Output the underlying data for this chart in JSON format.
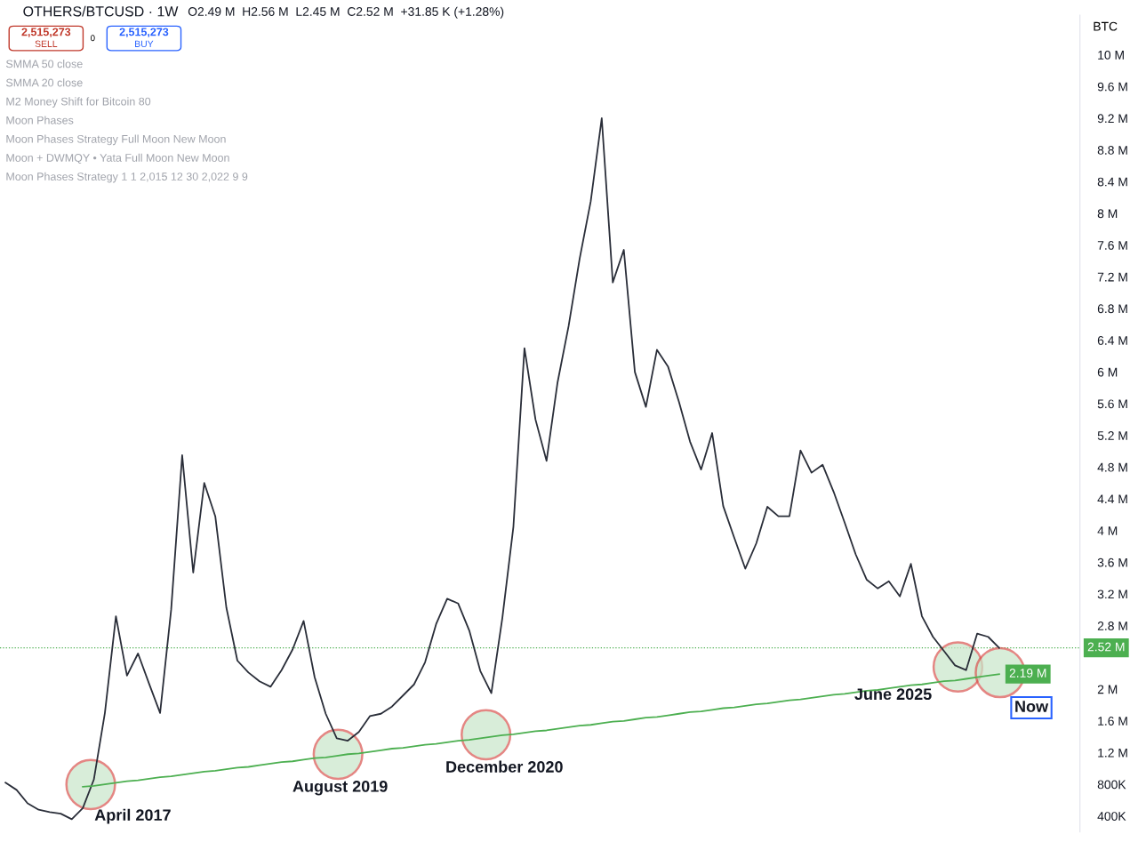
{
  "chart_data": {
    "type": "line",
    "title": "OTHERS/BTCUSD · 1W",
    "subtitle": "O2.49 M  H2.56 M  L2.45 M  C2.52 M  +31.85 K (+1.28%)",
    "ylabel": "BTC",
    "categories": [
      null,
      null,
      null,
      null,
      null,
      null,
      null,
      null,
      null,
      null,
      null,
      null,
      null,
      null,
      null,
      null,
      null,
      null,
      null,
      null,
      null,
      null,
      null,
      null,
      null,
      null,
      null,
      null,
      null,
      null,
      null,
      null,
      null,
      null,
      null,
      null,
      null,
      null,
      null,
      null,
      null,
      null,
      null,
      null,
      null,
      null,
      null,
      null,
      null,
      null,
      null,
      null,
      null,
      null,
      null,
      null,
      null,
      null,
      null,
      null,
      null,
      null,
      null,
      null,
      null,
      null,
      null,
      null,
      null,
      null,
      null,
      null,
      null,
      null,
      null,
      null,
      null,
      null,
      null,
      null,
      null,
      null,
      null,
      null,
      null,
      null,
      null,
      null,
      null,
      null,
      null
    ],
    "series": [
      {
        "color": "#2a2e39",
        "values": [
          820000,
          730000,
          560000,
          480000,
          450000,
          430000,
          360000,
          500000,
          860000,
          1700000,
          2920000,
          2170000,
          2450000,
          2070000,
          1700000,
          3000000,
          4950000,
          3470000,
          4600000,
          4180000,
          3030000,
          2360000,
          2210000,
          2100000,
          2030000,
          2240000,
          2500000,
          2860000,
          2150000,
          1690000,
          1380000,
          1350000,
          1460000,
          1660000,
          1690000,
          1780000,
          1920000,
          2060000,
          2340000,
          2820000,
          3140000,
          3080000,
          2740000,
          2230000,
          1950000,
          2900000,
          4050000,
          6300000,
          5400000,
          4880000,
          5870000,
          6580000,
          7430000,
          8150000,
          9200000,
          7130000,
          7540000,
          6000000,
          5560000,
          6280000,
          6070000,
          5620000,
          5120000,
          4770000,
          5230000,
          4310000,
          3910000,
          3520000,
          3840000,
          4300000,
          4180000,
          4180000,
          5010000,
          4730000,
          4830000,
          4490000,
          4100000,
          3700000,
          3380000,
          3270000,
          3360000,
          3170000,
          3580000,
          2920000,
          2660000,
          2480000,
          2300000,
          2240000,
          2700000,
          2660000,
          2520000
        ]
      },
      {
        "color": "#4caf50",
        "values": [
          null,
          null,
          null,
          null,
          null,
          null,
          null,
          770000,
          780000,
          800000,
          820000,
          840000,
          850000,
          870000,
          890000,
          900000,
          920000,
          940000,
          960000,
          970000,
          990000,
          1010000,
          1020000,
          1040000,
          1060000,
          1080000,
          1090000,
          1110000,
          1130000,
          1140000,
          1160000,
          1180000,
          1190000,
          1210000,
          1230000,
          1250000,
          1260000,
          1280000,
          1300000,
          1310000,
          1330000,
          1350000,
          1360000,
          1380000,
          1400000,
          1420000,
          1430000,
          1450000,
          1470000,
          1480000,
          1500000,
          1520000,
          1540000,
          1550000,
          1570000,
          1590000,
          1600000,
          1620000,
          1640000,
          1650000,
          1670000,
          1690000,
          1710000,
          1720000,
          1740000,
          1760000,
          1770000,
          1790000,
          1810000,
          1820000,
          1840000,
          1860000,
          1870000,
          1890000,
          1910000,
          1930000,
          1940000,
          1960000,
          1980000,
          1990000,
          2010000,
          2030000,
          2050000,
          2060000,
          2080000,
          2100000,
          2110000,
          2130000,
          2150000,
          2170000,
          2190000
        ],
        "value_labels": [
          null,
          null,
          null,
          null,
          null,
          null,
          null,
          null,
          null,
          null,
          null,
          null,
          null,
          null,
          null,
          null,
          null,
          null,
          null,
          null,
          null,
          null,
          null,
          null,
          null,
          null,
          null,
          null,
          null,
          null,
          null,
          null,
          null,
          null,
          null,
          null,
          null,
          null,
          null,
          null,
          null,
          null,
          null,
          null,
          null,
          null,
          null,
          null,
          null,
          null,
          null,
          null,
          null,
          null,
          null,
          null,
          null,
          null,
          null,
          null,
          null,
          null,
          null,
          null,
          null,
          null,
          null,
          null,
          null,
          null,
          null,
          null,
          null,
          null,
          null,
          null,
          null,
          null,
          null,
          null,
          null,
          null,
          null,
          null,
          null,
          null,
          null,
          null,
          null,
          null,
          "2.19 M"
        ]
      }
    ],
    "ylim": [
      200000,
      10500000
    ],
    "yticks": [
      {
        "value": 400000,
        "label": "400K"
      },
      {
        "value": 800000,
        "label": "800K"
      },
      {
        "value": 1200000,
        "label": "1.2 M"
      },
      {
        "value": 1600000,
        "label": "1.6 M"
      },
      {
        "value": 2000000,
        "label": "2 M"
      },
      {
        "value": 2800000,
        "label": "2.8 M"
      },
      {
        "value": 3200000,
        "label": "3.2 M"
      },
      {
        "value": 3600000,
        "label": "3.6 M"
      },
      {
        "value": 4000000,
        "label": "4 M"
      },
      {
        "value": 4400000,
        "label": "4.4 M"
      },
      {
        "value": 4800000,
        "label": "4.8 M"
      },
      {
        "value": 5200000,
        "label": "5.2 M"
      },
      {
        "value": 5600000,
        "label": "5.6 M"
      },
      {
        "value": 6000000,
        "label": "6 M"
      },
      {
        "value": 6400000,
        "label": "6.4 M"
      },
      {
        "value": 6800000,
        "label": "6.8 M"
      },
      {
        "value": 7200000,
        "label": "7.2 M"
      },
      {
        "value": 7600000,
        "label": "7.6 M"
      },
      {
        "value": 8000000,
        "label": "8 M"
      },
      {
        "value": 8400000,
        "label": "8.4 M"
      },
      {
        "value": 8800000,
        "label": "8.8 M"
      },
      {
        "value": 9200000,
        "label": "9.2 M"
      },
      {
        "value": 9600000,
        "label": "9.6 M"
      },
      {
        "value": 10000000,
        "label": "10 M"
      }
    ],
    "tick_labels": "y",
    "grid": false,
    "ref_lines": [
      {
        "axis": "y",
        "value": 2520000,
        "label": "2.52 M",
        "color": "#4caf50",
        "line_style": "dotted"
      }
    ],
    "annotations": [
      "2,515,273",
      "SELL",
      "0",
      "2,515,273",
      "BUY",
      "SMMA 50 close",
      "SMMA 20 close",
      "M2 Money Shift for Bitcoin 80",
      "Moon Phases",
      "Moon Phases Strategy Full Moon New Moon",
      "Moon + DWMQY • Yata Full Moon New Moon",
      "Moon Phases Strategy 1 1 2,015 12 30 2,022 9 9",
      "April 2017",
      "August 2019",
      "December 2020",
      "June 2025",
      "Now"
    ]
  }
}
